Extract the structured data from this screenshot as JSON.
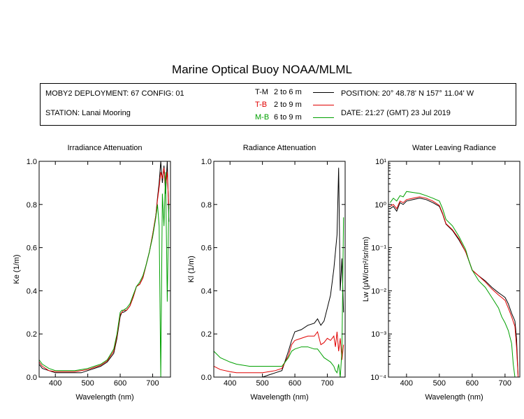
{
  "title": "Marine Optical Buoy NOAA/MLML",
  "info": {
    "deployment": "MOBY2 DEPLOYMENT: 67 CONFIG: 01",
    "station": "STATION: Lanai Mooring",
    "position": "POSITION: 20° 48.78' N   157° 11.04' W",
    "date": "DATE: 21:27 (GMT) 23 Jul 2019"
  },
  "legend": [
    {
      "label": "T-M",
      "range": "2 to 6  m",
      "color": "#000000"
    },
    {
      "label": "T-B",
      "range": "2 to 9  m",
      "color": "#e00000"
    },
    {
      "label": "M-B",
      "range": "6 to 9  m",
      "color": "#00a000"
    }
  ],
  "chart_data": [
    {
      "type": "line",
      "title": "Irradiance Attenuation",
      "xlabel": "Wavelength (nm)",
      "ylabel": "Ke  (1/m)",
      "xlim": [
        350,
        755
      ],
      "ylim": [
        0,
        1.0
      ],
      "xticks": [
        "400",
        "500",
        "600",
        "700"
      ],
      "yticks": [
        "0.0",
        "0.2",
        "0.4",
        "0.6",
        "0.8",
        "1.0"
      ],
      "series": [
        {
          "name": "T-M",
          "color": "#000000",
          "x": [
            350,
            360,
            380,
            400,
            420,
            440,
            460,
            480,
            500,
            520,
            540,
            560,
            580,
            590,
            600,
            605,
            610,
            620,
            630,
            640,
            650,
            660,
            670,
            680,
            690,
            700,
            710,
            715,
            720,
            725,
            730,
            735,
            740,
            745,
            750
          ],
          "y": [
            0.06,
            0.04,
            0.03,
            0.02,
            0.02,
            0.02,
            0.02,
            0.02,
            0.03,
            0.04,
            0.05,
            0.07,
            0.11,
            0.18,
            0.28,
            0.3,
            0.3,
            0.31,
            0.33,
            0.37,
            0.42,
            0.43,
            0.46,
            0.52,
            0.58,
            0.66,
            0.75,
            0.83,
            0.9,
            1.0,
            0.9,
            0.98,
            0.85,
            1.0,
            0.72
          ]
        },
        {
          "name": "T-B",
          "color": "#e00000",
          "x": [
            350,
            360,
            380,
            400,
            420,
            440,
            460,
            480,
            500,
            520,
            540,
            560,
            580,
            590,
            600,
            605,
            610,
            620,
            630,
            640,
            650,
            660,
            670,
            680,
            690,
            700,
            710,
            715,
            720,
            725,
            730,
            735,
            740,
            745,
            750
          ],
          "y": [
            0.07,
            0.05,
            0.03,
            0.025,
            0.025,
            0.025,
            0.025,
            0.03,
            0.035,
            0.045,
            0.055,
            0.075,
            0.12,
            0.19,
            0.29,
            0.3,
            0.31,
            0.31,
            0.33,
            0.37,
            0.42,
            0.43,
            0.46,
            0.52,
            0.58,
            0.66,
            0.75,
            0.82,
            0.88,
            0.95,
            0.92,
            0.97,
            0.88,
            0.95,
            0.78
          ]
        },
        {
          "name": "M-B",
          "color": "#00a000",
          "x": [
            350,
            360,
            380,
            400,
            420,
            440,
            460,
            480,
            500,
            520,
            540,
            560,
            580,
            590,
            600,
            605,
            610,
            620,
            630,
            640,
            650,
            660,
            670,
            680,
            690,
            700,
            710,
            715,
            720,
            725,
            730,
            735,
            740,
            745,
            750
          ],
          "y": [
            0.08,
            0.06,
            0.04,
            0.03,
            0.03,
            0.03,
            0.03,
            0.035,
            0.04,
            0.05,
            0.06,
            0.08,
            0.13,
            0.2,
            0.3,
            0.31,
            0.31,
            0.32,
            0.34,
            0.38,
            0.42,
            0.44,
            0.47,
            0.52,
            0.58,
            0.65,
            0.74,
            0.8,
            0.7,
            0.0,
            0.85,
            0.7,
            0.95,
            0.35,
            0.8
          ]
        }
      ]
    },
    {
      "type": "line",
      "title": "Radiance Attenuation",
      "xlabel": "Wavelength (nm)",
      "ylabel": "Kl  (1/m)",
      "xlim": [
        350,
        755
      ],
      "ylim": [
        0,
        1.0
      ],
      "xticks": [
        "400",
        "500",
        "600",
        "700"
      ],
      "yticks": [
        "0.0",
        "0.2",
        "0.4",
        "0.6",
        "0.8",
        "1.0"
      ],
      "series": [
        {
          "name": "T-M",
          "color": "#000000",
          "x": [
            350,
            370,
            400,
            420,
            440,
            460,
            480,
            500,
            520,
            540,
            560,
            580,
            590,
            600,
            620,
            640,
            660,
            670,
            680,
            690,
            700,
            710,
            720,
            725,
            730,
            735,
            740,
            745,
            750
          ],
          "y": [
            0.0,
            0.0,
            0.0,
            0.0,
            0.0,
            0.0,
            0.0,
            0.0,
            0.01,
            0.02,
            0.03,
            0.12,
            0.17,
            0.21,
            0.22,
            0.24,
            0.25,
            0.27,
            0.24,
            0.26,
            0.32,
            0.38,
            0.5,
            0.58,
            0.66,
            0.97,
            0.4,
            0.55,
            0.3
          ]
        },
        {
          "name": "T-B",
          "color": "#e00000",
          "x": [
            350,
            370,
            400,
            420,
            440,
            460,
            480,
            500,
            520,
            540,
            560,
            580,
            590,
            600,
            620,
            640,
            660,
            670,
            680,
            690,
            700,
            710,
            720,
            725,
            730,
            735,
            740,
            745,
            750
          ],
          "y": [
            0.05,
            0.035,
            0.025,
            0.02,
            0.02,
            0.02,
            0.02,
            0.02,
            0.025,
            0.03,
            0.04,
            0.1,
            0.15,
            0.17,
            0.18,
            0.19,
            0.19,
            0.21,
            0.15,
            0.16,
            0.18,
            0.17,
            0.19,
            0.14,
            0.21,
            0.12,
            0.18,
            0.08,
            0.15
          ]
        },
        {
          "name": "M-B",
          "color": "#00a000",
          "x": [
            350,
            370,
            400,
            420,
            440,
            460,
            480,
            500,
            520,
            540,
            560,
            580,
            590,
            600,
            620,
            640,
            660,
            670,
            680,
            690,
            700,
            710,
            720,
            725,
            730,
            735,
            740,
            745,
            750
          ],
          "y": [
            0.12,
            0.09,
            0.07,
            0.06,
            0.055,
            0.05,
            0.05,
            0.05,
            0.05,
            0.05,
            0.05,
            0.09,
            0.12,
            0.13,
            0.14,
            0.14,
            0.13,
            0.13,
            0.11,
            0.09,
            0.08,
            0.07,
            0.05,
            0.03,
            0.02,
            0.06,
            0.0,
            0.12,
            0.74
          ]
        }
      ]
    },
    {
      "type": "line",
      "title": "Water Leaving Radiance",
      "xlabel": "Wavelength (nm)",
      "ylabel": "Lw  (μW/cm²/sr/nm)",
      "log_y": true,
      "xlim": [
        345,
        745
      ],
      "ylim": [
        0.0001,
        10
      ],
      "xticks": [
        "400",
        "500",
        "600",
        "700"
      ],
      "yticks": [
        "10⁻⁴",
        "10⁻³",
        "10⁻²",
        "10⁻¹",
        "10⁰",
        "10¹"
      ],
      "series": [
        {
          "name": "T-M",
          "color": "#000000",
          "x": [
            350,
            360,
            370,
            380,
            390,
            400,
            420,
            440,
            460,
            480,
            500,
            510,
            520,
            540,
            560,
            580,
            590,
            600,
            620,
            640,
            660,
            680,
            690,
            700,
            710,
            720,
            730,
            735,
            740
          ],
          "y": [
            0.8,
            0.9,
            0.7,
            1.1,
            1.0,
            1.2,
            1.3,
            1.4,
            1.3,
            1.1,
            0.9,
            0.6,
            0.35,
            0.25,
            0.15,
            0.08,
            0.05,
            0.03,
            0.022,
            0.017,
            0.012,
            0.009,
            0.008,
            0.007,
            0.005,
            0.003,
            0.002,
            0.0008,
            0.0001
          ]
        },
        {
          "name": "T-B",
          "color": "#e00000",
          "x": [
            350,
            360,
            370,
            380,
            390,
            400,
            420,
            440,
            460,
            480,
            500,
            510,
            520,
            540,
            560,
            580,
            590,
            600,
            620,
            640,
            660,
            680,
            690,
            700,
            710,
            720,
            730,
            735,
            740
          ],
          "y": [
            0.9,
            1.0,
            0.8,
            1.2,
            1.1,
            1.3,
            1.4,
            1.5,
            1.4,
            1.2,
            0.95,
            0.62,
            0.36,
            0.26,
            0.16,
            0.08,
            0.05,
            0.03,
            0.022,
            0.016,
            0.011,
            0.008,
            0.007,
            0.006,
            0.004,
            0.0025,
            0.0015,
            0.0005,
            0.0001
          ]
        },
        {
          "name": "M-B",
          "color": "#00a000",
          "x": [
            350,
            360,
            370,
            380,
            390,
            400,
            420,
            440,
            460,
            480,
            500,
            510,
            520,
            540,
            560,
            580,
            590,
            600,
            620,
            640,
            660,
            680,
            690,
            700,
            710,
            720,
            725,
            730
          ],
          "y": [
            1.1,
            1.4,
            1.2,
            1.6,
            1.5,
            2.0,
            1.9,
            1.8,
            1.6,
            1.4,
            1.2,
            0.8,
            0.45,
            0.32,
            0.18,
            0.09,
            0.05,
            0.03,
            0.017,
            0.012,
            0.007,
            0.004,
            0.0025,
            0.0018,
            0.0012,
            0.0006,
            0.0002,
            0.0001
          ]
        }
      ]
    }
  ]
}
